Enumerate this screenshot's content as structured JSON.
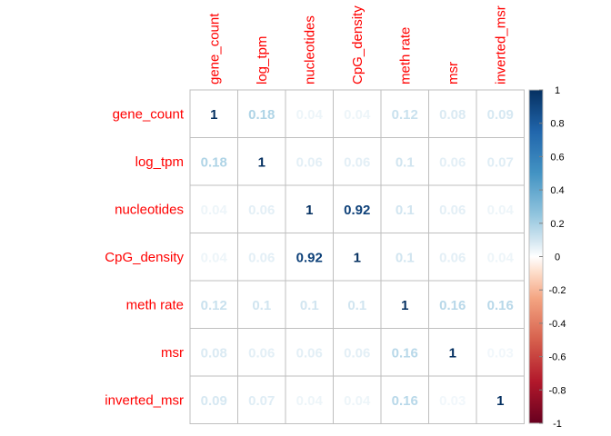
{
  "chart_data": {
    "type": "heatmap",
    "variables": [
      "gene_count",
      "log_tpm",
      "nucleotides",
      "CpG_density",
      "meth rate",
      "msr",
      "inverted_msr"
    ],
    "cell_labels": [
      [
        "1",
        "0.18",
        "0.04",
        "0.04",
        "0.12",
        "0.08",
        "0.09"
      ],
      [
        "0.18",
        "1",
        "0.06",
        "0.06",
        "0.1",
        "0.06",
        "0.07"
      ],
      [
        "0.04",
        "0.06",
        "1",
        "0.92",
        "0.1",
        "0.06",
        "0.04"
      ],
      [
        "0.04",
        "0.06",
        "0.92",
        "1",
        "0.1",
        "0.06",
        "0.04"
      ],
      [
        "0.12",
        "0.1",
        "0.1",
        "0.1",
        "1",
        "0.16",
        "0.16"
      ],
      [
        "0.08",
        "0.06",
        "0.06",
        "0.06",
        "0.16",
        "1",
        "0.03"
      ],
      [
        "0.09",
        "0.07",
        "0.04",
        "0.04",
        "0.16",
        "0.03",
        "1"
      ]
    ],
    "colorbar": {
      "range": [
        -1,
        1
      ],
      "ticks": [
        "1",
        "0.8",
        "0.6",
        "0.4",
        "0.2",
        "0",
        "-0.2",
        "-0.4",
        "-0.6",
        "-0.8",
        "-1"
      ]
    },
    "colors": {
      "label": "#ff0000",
      "grid": "#bfbfbf",
      "positive_strong": "#053061",
      "positive_mid": "#4393c3",
      "positive_light": "#d1e5f0",
      "neutral": "#f7f7f7",
      "negative_light": "#fddbc7",
      "negative_mid": "#d6604d",
      "negative_strong": "#67001f"
    }
  }
}
